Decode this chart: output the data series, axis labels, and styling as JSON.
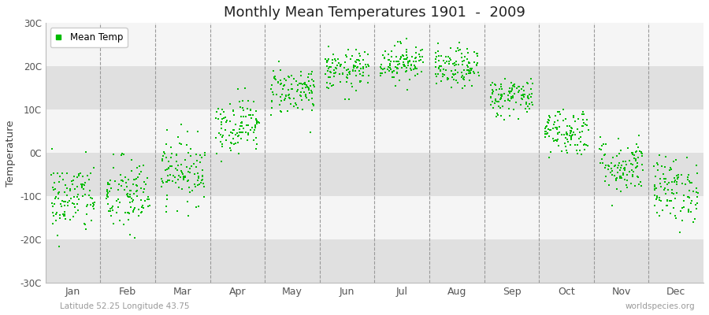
{
  "title": "Monthly Mean Temperatures 1901  -  2009",
  "ylabel": "Temperature",
  "bottom_left": "Latitude 52.25 Longitude 43.75",
  "bottom_right": "worldspecies.org",
  "legend_label": "Mean Temp",
  "dot_color": "#00bb00",
  "background_color": "#ebebeb",
  "band_colors": [
    "#e0e0e0",
    "#f5f5f5"
  ],
  "ylim": [
    -30,
    30
  ],
  "yticks": [
    -30,
    -20,
    -10,
    0,
    10,
    20,
    30
  ],
  "ytick_labels": [
    "-30C",
    "-20C",
    "-10C",
    "0C",
    "10C",
    "20C",
    "30C"
  ],
  "months": [
    "Jan",
    "Feb",
    "Mar",
    "Apr",
    "May",
    "Jun",
    "Jul",
    "Aug",
    "Sep",
    "Oct",
    "Nov",
    "Dec"
  ],
  "monthly_means": [
    -10.5,
    -10.0,
    -4.0,
    6.5,
    14.5,
    19.0,
    21.0,
    19.5,
    13.0,
    5.0,
    -3.0,
    -8.5
  ],
  "monthly_stds": [
    4.2,
    4.5,
    3.8,
    3.2,
    2.8,
    2.3,
    2.2,
    2.3,
    2.3,
    2.8,
    3.2,
    3.8
  ],
  "n_years": 109,
  "dot_size": 4,
  "dpi": 100,
  "figsize": [
    9.0,
    4.0
  ]
}
